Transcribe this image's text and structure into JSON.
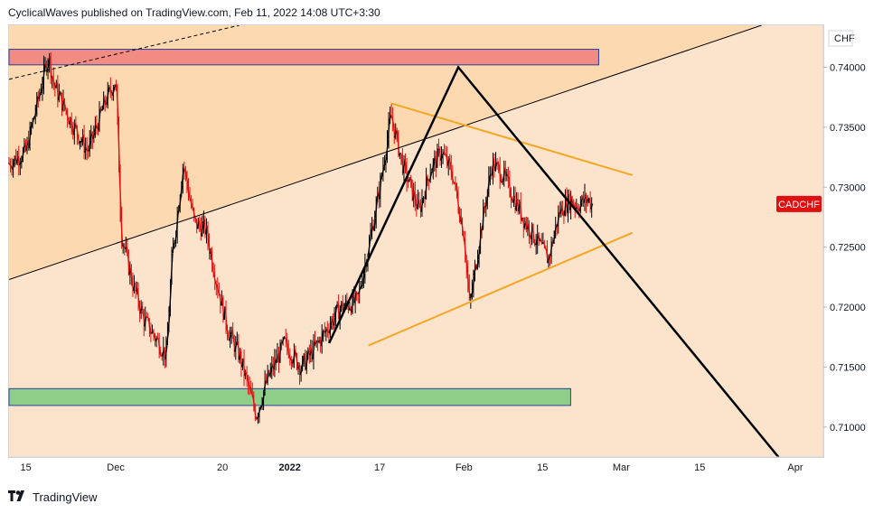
{
  "header": {
    "attribution": "CyclicalWaves published on TradingView.com, Feb 11, 2022 14:08 UTC+3:30"
  },
  "footer": {
    "brand": "TradingView",
    "logo_icon": "tradingview-logo-icon"
  },
  "chart_data": {
    "type": "candlestick",
    "symbol": "CADCHF",
    "currency": "CHF",
    "last_price_label": "CADCHF",
    "y_ticks": [
      "0.74000",
      "0.73500",
      "0.73000",
      "0.72500",
      "0.72000",
      "0.71500",
      "0.71000"
    ],
    "y_range": [
      0.7075,
      0.7435
    ],
    "x_ticks": [
      "15",
      "Dec",
      "20",
      "2022",
      "17",
      "Feb",
      "15",
      "Mar",
      "15",
      "Apr"
    ],
    "x_range": [
      "2021-11-12",
      "2022-04-06"
    ],
    "price_path": [
      [
        "2021-11-12",
        0.732
      ],
      [
        "2021-11-15",
        0.733
      ],
      [
        "2021-11-17",
        0.737
      ],
      [
        "2021-11-19",
        0.741
      ],
      [
        "2021-11-20",
        0.7385
      ],
      [
        "2021-11-23",
        0.7355
      ],
      [
        "2021-11-26",
        0.733
      ],
      [
        "2021-11-29",
        0.737
      ],
      [
        "2021-12-01",
        0.739
      ],
      [
        "2021-12-02",
        0.726
      ],
      [
        "2021-12-04",
        0.722
      ],
      [
        "2021-12-06",
        0.719
      ],
      [
        "2021-12-08",
        0.7175
      ],
      [
        "2021-12-10",
        0.716
      ],
      [
        "2021-12-11",
        0.724
      ],
      [
        "2021-12-13",
        0.732
      ],
      [
        "2021-12-15",
        0.727
      ],
      [
        "2021-12-17",
        0.7265
      ],
      [
        "2021-12-19",
        0.722
      ],
      [
        "2021-12-21",
        0.718
      ],
      [
        "2021-12-23",
        0.716
      ],
      [
        "2021-12-26",
        0.711
      ],
      [
        "2021-12-28",
        0.714
      ],
      [
        "2021-12-31",
        0.717
      ],
      [
        "2022-01-03",
        0.715
      ],
      [
        "2022-01-06",
        0.717
      ],
      [
        "2022-01-10",
        0.72
      ],
      [
        "2022-01-13",
        0.7205
      ],
      [
        "2022-01-15",
        0.725
      ],
      [
        "2022-01-17",
        0.73
      ],
      [
        "2022-01-19",
        0.736
      ],
      [
        "2022-01-21",
        0.732
      ],
      [
        "2022-01-24",
        0.728
      ],
      [
        "2022-01-26",
        0.7315
      ],
      [
        "2022-01-28",
        0.733
      ],
      [
        "2022-01-30",
        0.731
      ],
      [
        "2022-02-01",
        0.726
      ],
      [
        "2022-02-02",
        0.72
      ],
      [
        "2022-02-04",
        0.7265
      ],
      [
        "2022-02-06",
        0.732
      ],
      [
        "2022-02-08",
        0.731
      ],
      [
        "2022-02-10",
        0.729
      ],
      [
        "2022-02-12",
        0.727
      ],
      [
        "2022-02-14",
        0.7255
      ],
      [
        "2022-02-16",
        0.724
      ],
      [
        "2022-02-18",
        0.728
      ],
      [
        "2022-02-20",
        0.729
      ],
      [
        "2022-02-21",
        0.7285
      ],
      [
        "2022-02-23",
        0.729
      ],
      [
        "2022-02-24",
        0.7285
      ]
    ],
    "annotations": {
      "resistance_zone": {
        "date_range": [
          "2021-11-12",
          "2022-02-25"
        ],
        "price_range": [
          0.7402,
          0.7415
        ],
        "color": "#f28b82"
      },
      "support_zone": {
        "date_range": [
          "2021-11-12",
          "2022-02-20"
        ],
        "price_range": [
          0.7118,
          0.7132
        ],
        "color": "#8fcf8a"
      },
      "shaded_area_color": "#fcd9b0",
      "background_color": "#fbe3cc",
      "triangle_upper": {
        "from": [
          "2022-01-19",
          0.737
        ],
        "to": [
          "2022-03-03",
          0.731
        ],
        "color": "#f5a623"
      },
      "triangle_lower": {
        "from": [
          "2022-01-15",
          0.7168
        ],
        "to": [
          "2022-03-03",
          0.7262
        ],
        "color": "#f5a623"
      },
      "peak_lines": {
        "left": [
          "2022-01-08",
          0.717
        ],
        "apex": [
          "2022-01-31",
          0.74
        ],
        "right": [
          "2022-03-29",
          0.7075
        ],
        "color": "#000000"
      },
      "rising_trendline": {
        "from": [
          "2021-11-12",
          0.7223
        ],
        "to": [
          "2022-03-26",
          0.7435
        ]
      },
      "dashed_trendline": {
        "from": [
          "2021-11-12",
          0.739
        ],
        "to": [
          "2021-12-23",
          0.7435
        ]
      }
    }
  }
}
